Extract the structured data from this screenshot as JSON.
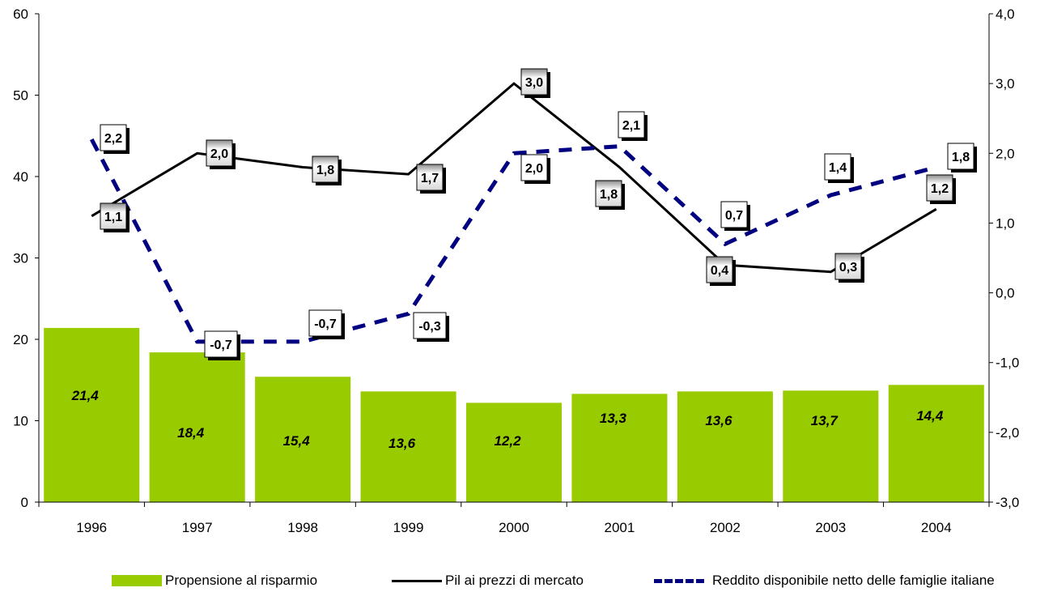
{
  "chart_data": {
    "type": "bar",
    "categories": [
      "1996",
      "1997",
      "1998",
      "1999",
      "2000",
      "2001",
      "2002",
      "2003",
      "2004"
    ],
    "ylim": [
      0,
      60
    ],
    "y_ticks": [
      "0",
      "10",
      "20",
      "30",
      "40",
      "50",
      "60"
    ],
    "y2lim": [
      -3.0,
      4.0
    ],
    "y2_ticks": [
      "-3,0",
      "-2,0",
      "-1,0",
      "0,0",
      "1,0",
      "2,0",
      "3,0",
      "4,0"
    ],
    "grid": false,
    "legend_position": "bottom",
    "series": [
      {
        "name": "Propensione al risparmio",
        "type": "bar",
        "axis": "left",
        "color": "#99cc00",
        "values": [
          21.4,
          18.4,
          15.4,
          13.6,
          12.2,
          13.3,
          13.6,
          13.7,
          14.4
        ],
        "labels": [
          "21,4",
          "18,4",
          "15,4",
          "13,6",
          "12,2",
          "13,3",
          "13,6",
          "13,7",
          "14,4"
        ]
      },
      {
        "name": "Pil ai prezzi di mercato",
        "type": "line",
        "axis": "right",
        "color": "#000000",
        "values": [
          1.1,
          2.0,
          1.8,
          1.7,
          3.0,
          1.8,
          0.4,
          0.3,
          1.2
        ],
        "labels": [
          "1,1",
          "2,0",
          "1,8",
          "1,7",
          "3,0",
          "1,8",
          "0,4",
          "0,3",
          "1,2"
        ]
      },
      {
        "name": "Reddito disponibile netto delle famiglie italiane",
        "type": "line",
        "style": "dashed",
        "axis": "right",
        "color": "#000080",
        "values": [
          2.2,
          -0.7,
          -0.7,
          -0.3,
          2.0,
          2.1,
          0.7,
          1.4,
          1.8
        ],
        "labels": [
          "2,2",
          "-0,7",
          "-0,7",
          "-0,3",
          "2,0",
          "2,1",
          "0,7",
          "1,4",
          "1,8"
        ]
      }
    ]
  }
}
